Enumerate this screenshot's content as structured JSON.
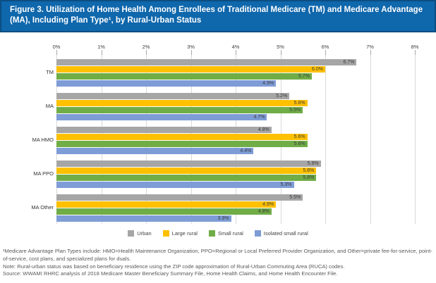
{
  "header": {
    "title": "Figure 3. Utilization of Home Health Among Enrollees of Traditional Medicare (TM) and Medicare Advantage (MA), Including Plan Type¹, by Rural-Urban Status",
    "bg_color": "#0f67ac",
    "border_color": "#0b4e82"
  },
  "chart_data": {
    "type": "bar",
    "orientation": "horizontal",
    "title": "Utilization of Home Health Among Enrollees of TM and MA, Including Plan Type, by Rural-Urban Status",
    "categories": [
      "TM",
      "MA",
      "MA HMO",
      "MA PPO",
      "MA Other"
    ],
    "series": [
      {
        "name": "Urban",
        "color": "#a6a6a6",
        "values": [
          6.7,
          5.2,
          4.8,
          5.9,
          5.5
        ]
      },
      {
        "name": "Large rural",
        "color": "#ffc000",
        "values": [
          6.0,
          5.6,
          5.6,
          5.8,
          4.9
        ]
      },
      {
        "name": "Small rural",
        "color": "#70ad47",
        "values": [
          5.7,
          5.5,
          5.6,
          5.8,
          4.8
        ]
      },
      {
        "name": "Isolated small rural",
        "color": "#7e9cd6",
        "values": [
          4.9,
          4.7,
          4.4,
          5.3,
          3.9
        ]
      }
    ],
    "x_ticks": [
      "0%",
      "1%",
      "2%",
      "3%",
      "4%",
      "5%",
      "6%",
      "7%",
      "8%"
    ],
    "xlim": [
      0,
      8
    ],
    "xlabel": "",
    "ylabel": "",
    "data_labels": "inside_end_percent_1dp",
    "grid": true,
    "legend_position": "bottom"
  },
  "footnotes": [
    "¹Medicare Advantage Plan Types include: HMO=Health Maintenance Organization, PPO=Regional or Local Preferred Provider Organization, and Other=private fee-for-service, point-of-service, cost plans, and specialized plans for duals.",
    "Note: Rural-urban status was based on beneficiary residence using the ZIP code approximation of Rural-Urban Commuting Area (RUCA) codes.",
    "Source: WWAMI RHRC analysis of 2018 Medicare Master Beneficiary Summary File, Home Health Claims, and Home Health Encounter File."
  ]
}
